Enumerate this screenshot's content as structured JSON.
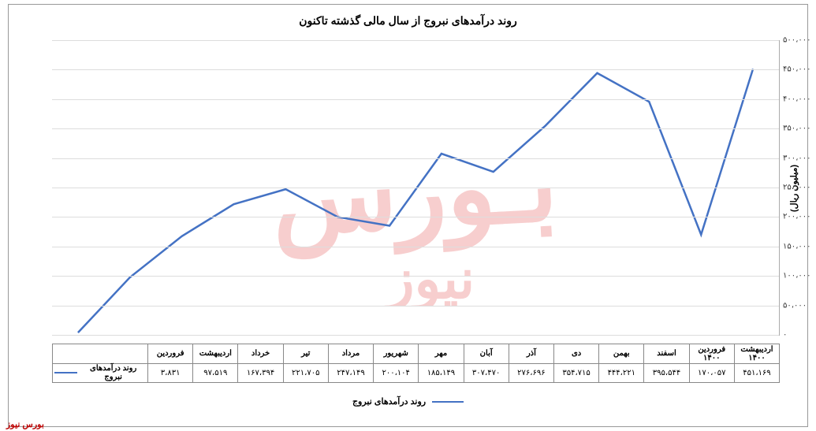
{
  "chart": {
    "type": "line",
    "title": "روند درآمدهای نبروج از سال مالی گذشته تاکنون",
    "y_axis_label": "(میلیون ریال)",
    "series_name": "روند درآمدهای نبروج",
    "line_color": "#4472c4",
    "line_width": 2.5,
    "background_color": "#ffffff",
    "grid_color": "#dddddd",
    "border_color": "#888888",
    "title_fontsize": 14,
    "label_fontsize": 11,
    "tick_fontsize": 10,
    "ylim": [
      0,
      500000
    ],
    "ytick_step": 50000,
    "yticks": [
      {
        "v": 0,
        "label": "۰"
      },
      {
        "v": 50000,
        "label": "۵۰،۰۰۰"
      },
      {
        "v": 100000,
        "label": "۱۰۰،۰۰۰"
      },
      {
        "v": 150000,
        "label": "۱۵۰،۰۰۰"
      },
      {
        "v": 200000,
        "label": "۲۰۰،۰۰۰"
      },
      {
        "v": 250000,
        "label": "۲۵۰،۰۰۰"
      },
      {
        "v": 300000,
        "label": "۳۰۰،۰۰۰"
      },
      {
        "v": 350000,
        "label": "۳۵۰،۰۰۰"
      },
      {
        "v": 400000,
        "label": "۴۰۰،۰۰۰"
      },
      {
        "v": 450000,
        "label": "۴۵۰،۰۰۰"
      },
      {
        "v": 500000,
        "label": "۵۰۰،۰۰۰"
      }
    ],
    "categories": [
      "فروردین",
      "اردیبهشت",
      "خرداد",
      "تیر",
      "مرداد",
      "شهریور",
      "مهر",
      "آبان",
      "آذر",
      "دی",
      "بهمن",
      "اسفند",
      "فروردین ۱۴۰۰",
      "اردیبهشت ۱۴۰۰"
    ],
    "values": [
      3831,
      97519,
      167394,
      221705,
      247149,
      200104,
      185149,
      307470,
      276696,
      354715,
      444221,
      395544,
      170057,
      451169
    ],
    "value_labels": [
      "۳،۸۳۱",
      "۹۷،۵۱۹",
      "۱۶۷،۳۹۴",
      "۲۲۱،۷۰۵",
      "۲۴۷،۱۴۹",
      "۲۰۰،۱۰۴",
      "۱۸۵،۱۴۹",
      "۳۰۷،۴۷۰",
      "۲۷۶،۶۹۶",
      "۳۵۴،۷۱۵",
      "۴۴۴،۲۲۱",
      "۳۹۵،۵۴۴",
      "۱۷۰،۰۵۷",
      "۴۵۱،۱۶۹"
    ]
  },
  "watermark": {
    "text": "بورس نیوز",
    "color": "#e86a6a",
    "opacity": 0.6,
    "fontsize": 120
  },
  "footer": {
    "credit": "بورس نیوز",
    "credit_color": "#bb0000"
  },
  "legend": {
    "label": "روند درآمدهای نبروج"
  }
}
